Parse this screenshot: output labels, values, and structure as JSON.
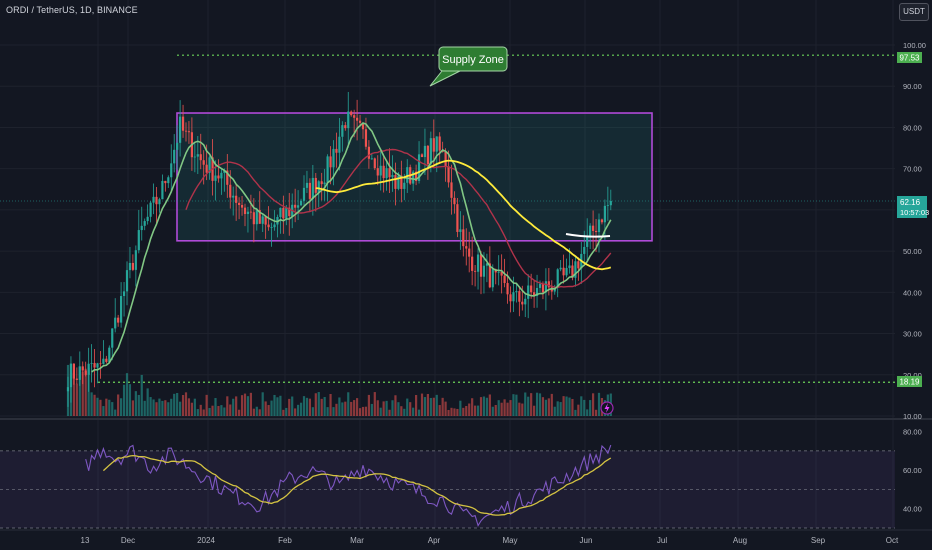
{
  "header": {
    "symbol_title": "ORDI / TetherUS, 1D, BINANCE",
    "currency_button": "USDT"
  },
  "annotation": {
    "supply_zone_label": "Supply Zone"
  },
  "price_markers": {
    "current_price": "62.16",
    "countdown": "10:57:03",
    "upper_level": "97.53",
    "lower_level": "18.19"
  },
  "colors": {
    "background": "#131722",
    "up": "#26a69a",
    "down": "#ef5350",
    "ma_fast": "#81c784",
    "ma_mid": "#b0334a",
    "ma_slow": "#ffeb3b",
    "zone_border": "#b04ad8",
    "zone_fill": "rgba(38,166,154,0.14)",
    "level_line": "#6bd35a",
    "rsi": "#7e57c2",
    "rsi_ma": "#d4c342"
  },
  "chart_data": [
    {
      "type": "candlestick",
      "y_axis_ticks": [
        "100.00",
        "90.00",
        "80.00",
        "70.00",
        "60.00",
        "50.00",
        "40.00",
        "30.00",
        "20.00",
        "10.00"
      ],
      "ylim": [
        10,
        100
      ],
      "x_tick_labels": [
        "13",
        "Dec",
        "2024",
        "Feb",
        "Mar",
        "Apr",
        "May",
        "Jun",
        "Jul",
        "Aug",
        "Sep",
        "Oct"
      ],
      "supply_zone": {
        "top": 83.5,
        "bottom": 52.5,
        "from": "Dec 18",
        "to": "Jun 18"
      },
      "horizontal_levels": [
        97.53,
        18.19
      ],
      "last_price": 62.16,
      "price_keyframes": [
        [
          0,
          20
        ],
        [
          12,
          22
        ],
        [
          18,
          38
        ],
        [
          25,
          55
        ],
        [
          32,
          65
        ],
        [
          38,
          80
        ],
        [
          45,
          72
        ],
        [
          52,
          68
        ],
        [
          60,
          60
        ],
        [
          68,
          55
        ],
        [
          75,
          60
        ],
        [
          82,
          65
        ],
        [
          88,
          70
        ],
        [
          94,
          82
        ],
        [
          100,
          78
        ],
        [
          106,
          70
        ],
        [
          112,
          66
        ],
        [
          118,
          70
        ],
        [
          124,
          76
        ],
        [
          128,
          72
        ],
        [
          134,
          50
        ],
        [
          140,
          46
        ],
        [
          146,
          42
        ],
        [
          152,
          38
        ],
        [
          158,
          40
        ],
        [
          164,
          42
        ],
        [
          170,
          44
        ],
        [
          176,
          52
        ],
        [
          180,
          58
        ],
        [
          184,
          62
        ]
      ]
    },
    {
      "type": "line",
      "name": "RSI",
      "y_axis_ticks": [
        "80.00",
        "60.00",
        "40.00"
      ],
      "ylim": [
        30,
        85
      ],
      "bands": [
        70,
        50,
        30
      ],
      "keyframes": [
        [
          6,
          62
        ],
        [
          12,
          72
        ],
        [
          16,
          66
        ],
        [
          22,
          70
        ],
        [
          28,
          62
        ],
        [
          35,
          68
        ],
        [
          45,
          58
        ],
        [
          55,
          48
        ],
        [
          65,
          42
        ],
        [
          75,
          55
        ],
        [
          82,
          60
        ],
        [
          92,
          52
        ],
        [
          100,
          62
        ],
        [
          110,
          54
        ],
        [
          120,
          48
        ],
        [
          128,
          44
        ],
        [
          134,
          36
        ],
        [
          140,
          35
        ],
        [
          148,
          40
        ],
        [
          156,
          46
        ],
        [
          166,
          54
        ],
        [
          174,
          62
        ],
        [
          184,
          72
        ]
      ]
    }
  ]
}
